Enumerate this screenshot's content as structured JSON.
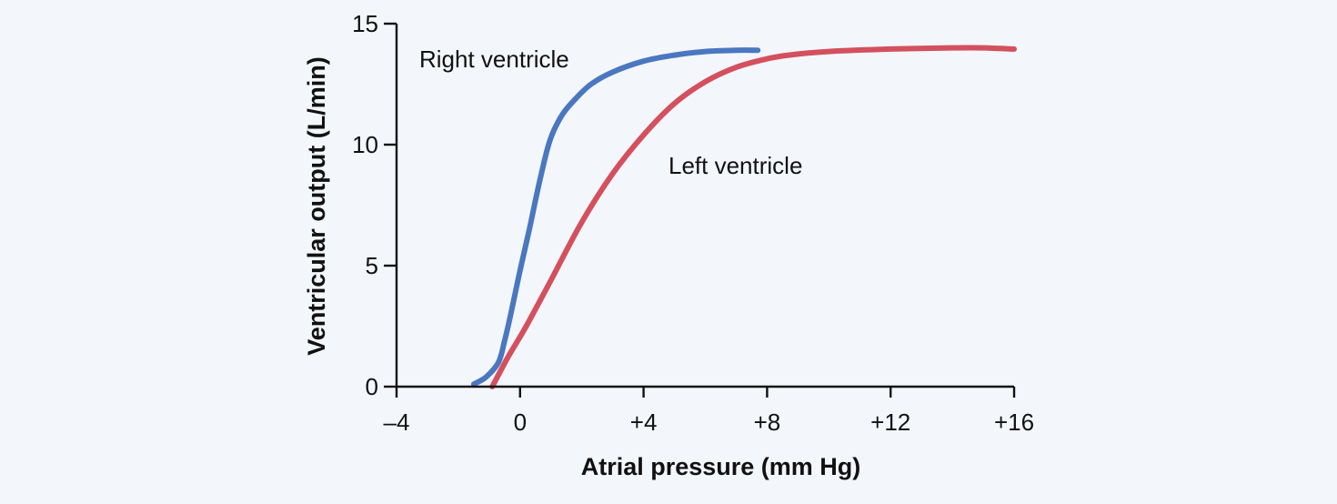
{
  "chart_data": {
    "type": "line",
    "title": "",
    "xlabel": "Atrial pressure (mm Hg)",
    "ylabel": "Ventricular output (L/min)",
    "xlim": [
      -4,
      16
    ],
    "ylim": [
      0,
      15
    ],
    "x_ticks": [
      {
        "value": -4,
        "label": "–4"
      },
      {
        "value": 0,
        "label": "0"
      },
      {
        "value": 4,
        "label": "+4"
      },
      {
        "value": 8,
        "label": "+8"
      },
      {
        "value": 12,
        "label": "+12"
      },
      {
        "value": 16,
        "label": "+16"
      }
    ],
    "y_ticks": [
      {
        "value": 0,
        "label": "0"
      },
      {
        "value": 5,
        "label": "5"
      },
      {
        "value": 10,
        "label": "10"
      },
      {
        "value": 15,
        "label": "15"
      }
    ],
    "grid": false,
    "legend": "none",
    "series": [
      {
        "name": "Right ventricle",
        "color": "#4a77c0",
        "x": [
          -1.5,
          -1.1,
          -0.7,
          -0.5,
          -0.3,
          0.0,
          0.3,
          0.6,
          0.9,
          1.1,
          1.4,
          1.8,
          2.3,
          3.0,
          4.0,
          5.0,
          6.0,
          7.0,
          7.7
        ],
        "y": [
          0.1,
          0.4,
          1.0,
          1.9,
          3.0,
          4.8,
          6.5,
          8.3,
          9.9,
          10.6,
          11.3,
          11.9,
          12.5,
          13.0,
          13.45,
          13.7,
          13.85,
          13.9,
          13.9
        ]
      },
      {
        "name": "Left ventricle",
        "color": "#d4505e",
        "x": [
          -0.9,
          -0.4,
          0.2,
          1.0,
          2.0,
          3.0,
          4.0,
          5.0,
          6.0,
          7.0,
          8.0,
          8.7,
          10.0,
          12.0,
          14.0,
          15.0,
          16.0
        ],
        "y": [
          0.0,
          1.2,
          2.5,
          4.4,
          6.8,
          8.8,
          10.4,
          11.7,
          12.6,
          13.2,
          13.55,
          13.7,
          13.85,
          13.95,
          14.0,
          14.0,
          13.95
        ]
      }
    ]
  }
}
